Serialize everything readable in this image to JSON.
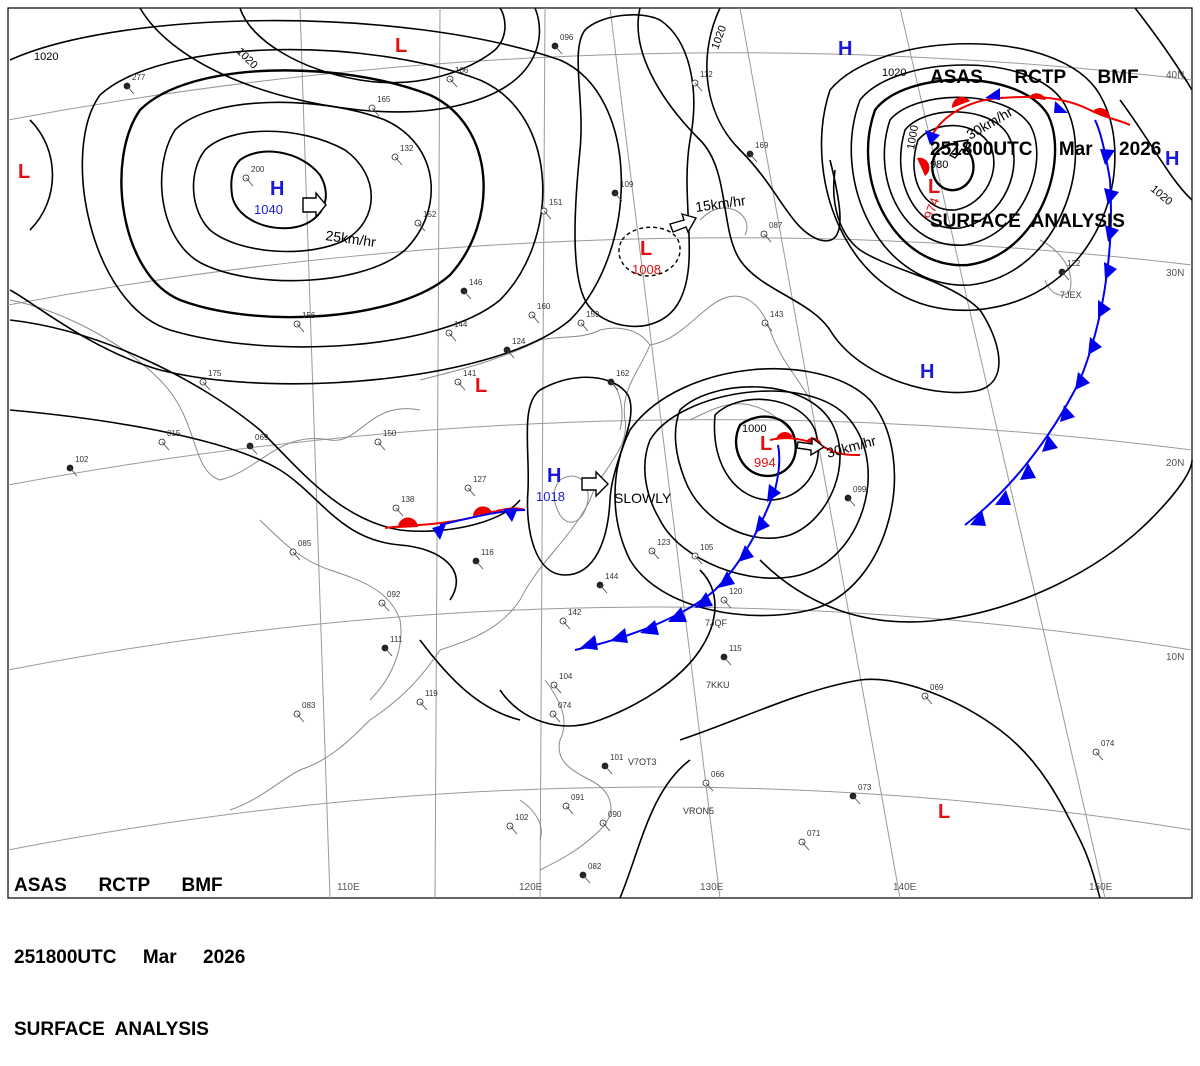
{
  "header": {
    "line1": "ASAS      RCTP      BMF",
    "line2": "251800UTC     Mar     2026",
    "line3": "SURFACE  ANALYSIS"
  },
  "lon_labels": [
    "110E",
    "120E",
    "130E",
    "140E",
    "150E"
  ],
  "lat_labels": [
    "40N",
    "30N",
    "20N",
    "10N"
  ],
  "isobar_labels": [
    "1020",
    "1020",
    "1020",
    "1020",
    "1020",
    "1000",
    "1000",
    "980"
  ],
  "pressure_centers": [
    {
      "type": "H",
      "value": "1040",
      "color": "#1a1ad6"
    },
    {
      "type": "H",
      "value": "1018",
      "color": "#1a1ad6"
    },
    {
      "type": "H",
      "value": "",
      "color": "#1a1ad6"
    },
    {
      "type": "H",
      "value": "",
      "color": "#1a1ad6"
    },
    {
      "type": "H",
      "value": "",
      "color": "#1a1ad6"
    },
    {
      "type": "L",
      "value": "1008",
      "color": "#e01010"
    },
    {
      "type": "L",
      "value": "994",
      "color": "#e01010"
    },
    {
      "type": "L",
      "value": "974",
      "color": "#e01010"
    },
    {
      "type": "L",
      "value": "",
      "color": "#e01010"
    },
    {
      "type": "L",
      "value": "",
      "color": "#e01010"
    },
    {
      "type": "L",
      "value": "",
      "color": "#e01010"
    },
    {
      "type": "L",
      "value": "",
      "color": "#e01010"
    }
  ],
  "motion_labels": [
    "25km/hr",
    "15km/hr",
    "30km/hr",
    "30km/hr",
    "SLOWLY"
  ],
  "ship_ids": [
    "7JQF",
    "7KKU",
    "7JEX",
    "V7OT3",
    "VRON5"
  ],
  "station_values": [
    "096",
    "106",
    "165",
    "277",
    "200",
    "152",
    "146",
    "144",
    "141",
    "124",
    "160",
    "159",
    "162",
    "127",
    "138",
    "116",
    "085",
    "150",
    "069",
    "175",
    "015",
    "102",
    "123",
    "105",
    "144",
    "142",
    "120",
    "115",
    "104",
    "074",
    "101",
    "091",
    "102",
    "082",
    "083",
    "119",
    "099",
    "069",
    "074",
    "073",
    "071",
    "066",
    "109",
    "112",
    "151",
    "169",
    "143",
    "087",
    "122",
    "132",
    "156",
    "111",
    "092",
    "090"
  ],
  "colors": {
    "high": "#1a1ad6",
    "low": "#e01010",
    "cold_front": "#0000ee",
    "warm_front": "#ee0000",
    "isobar": "#000000",
    "coast": "#8a8a8a",
    "grid": "#9a9a9a"
  }
}
